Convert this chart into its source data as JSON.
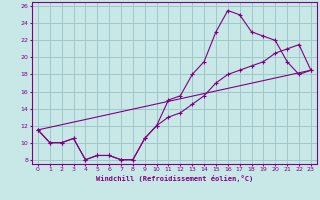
{
  "title": "",
  "xlabel": "Windchill (Refroidissement éolien,°C)",
  "ylabel": "",
  "bg_color": "#c8e8e8",
  "line_color": "#800080",
  "grid_color": "#a0c8c8",
  "xlim": [
    -0.5,
    23.5
  ],
  "ylim": [
    7.5,
    26.5
  ],
  "xticks": [
    0,
    1,
    2,
    3,
    4,
    5,
    6,
    7,
    8,
    9,
    10,
    11,
    12,
    13,
    14,
    15,
    16,
    17,
    18,
    19,
    20,
    21,
    22,
    23
  ],
  "yticks": [
    8,
    10,
    12,
    14,
    16,
    18,
    20,
    22,
    24,
    26
  ],
  "curve1_x": [
    0,
    1,
    2,
    3,
    4,
    5,
    6,
    7,
    8,
    9,
    10,
    11,
    12,
    13,
    14,
    15,
    16,
    17,
    18,
    19,
    20,
    21,
    22,
    23
  ],
  "curve1_y": [
    11.5,
    10.0,
    10.0,
    10.5,
    8.0,
    8.5,
    8.5,
    8.0,
    8.0,
    10.5,
    12.0,
    15.0,
    15.5,
    18.0,
    19.5,
    23.0,
    25.5,
    25.0,
    23.0,
    22.5,
    22.0,
    19.5,
    18.0,
    18.5
  ],
  "curve2_x": [
    0,
    1,
    2,
    3,
    4,
    5,
    6,
    7,
    8,
    9,
    10,
    11,
    12,
    13,
    14,
    15,
    16,
    17,
    18,
    19,
    20,
    21,
    22,
    23
  ],
  "curve2_y": [
    11.5,
    10.0,
    10.0,
    10.5,
    8.0,
    8.5,
    8.5,
    8.0,
    8.0,
    10.5,
    12.0,
    13.0,
    13.5,
    14.5,
    15.5,
    17.0,
    18.0,
    18.5,
    19.0,
    19.5,
    20.5,
    21.0,
    21.5,
    18.5
  ],
  "curve3_x": [
    0,
    23
  ],
  "curve3_y": [
    11.5,
    18.5
  ]
}
